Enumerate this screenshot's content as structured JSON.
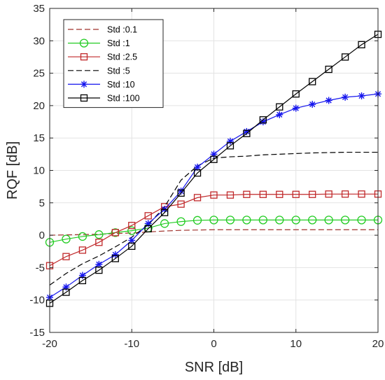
{
  "chart_data": {
    "type": "line",
    "xlabel": "SNR [dB]",
    "ylabel": "RQF [dB]",
    "xlim": [
      -20,
      20
    ],
    "ylim": [
      -15,
      35
    ],
    "xticks": [
      -20,
      -10,
      0,
      10,
      20
    ],
    "yticks": [
      -15,
      -10,
      -5,
      0,
      5,
      10,
      15,
      20,
      25,
      30,
      35
    ],
    "grid": true,
    "legend_position": "top-left",
    "x": [
      -20,
      -18,
      -16,
      -14,
      -12,
      -10,
      -8,
      -6,
      -4,
      -2,
      0,
      2,
      4,
      6,
      8,
      10,
      12,
      14,
      16,
      18,
      20
    ],
    "series": [
      {
        "name": "Std :0.1",
        "color": "#a0322c",
        "line_style": "dashed",
        "marker": "none",
        "values": [
          0.0,
          0.05,
          0.1,
          0.15,
          0.25,
          0.35,
          0.5,
          0.65,
          0.75,
          0.8,
          0.85,
          0.85,
          0.85,
          0.85,
          0.85,
          0.85,
          0.85,
          0.85,
          0.85,
          0.85,
          0.85
        ]
      },
      {
        "name": "Std :1",
        "color": "#22cc22",
        "line_style": "solid",
        "marker": "circle",
        "values": [
          -1.1,
          -0.6,
          -0.2,
          0.1,
          0.4,
          0.7,
          1.1,
          1.8,
          2.1,
          2.3,
          2.35,
          2.35,
          2.35,
          2.35,
          2.35,
          2.35,
          2.35,
          2.35,
          2.35,
          2.35,
          2.35
        ]
      },
      {
        "name": "Std :2.5",
        "color": "#c0282a",
        "line_style": "solid",
        "marker": "square",
        "values": [
          -4.7,
          -3.3,
          -2.3,
          -1.1,
          0.4,
          1.5,
          3.0,
          4.4,
          4.8,
          5.8,
          6.2,
          6.2,
          6.3,
          6.3,
          6.3,
          6.3,
          6.3,
          6.35,
          6.35,
          6.35,
          6.35
        ]
      },
      {
        "name": "Std :5",
        "color": "#000000",
        "line_style": "dashed",
        "marker": "none",
        "values": [
          -7.7,
          -5.9,
          -4.4,
          -3.2,
          -1.8,
          -0.3,
          1.6,
          4.4,
          8.5,
          10.7,
          11.9,
          12.1,
          12.2,
          12.4,
          12.5,
          12.6,
          12.7,
          12.75,
          12.8,
          12.8,
          12.8
        ]
      },
      {
        "name": "Std :10",
        "color": "#1515ee",
        "line_style": "solid",
        "marker": "asterisk",
        "values": [
          -9.6,
          -8.0,
          -6.2,
          -4.5,
          -3.0,
          -0.8,
          1.8,
          4.0,
          6.8,
          10.5,
          12.5,
          14.5,
          16.0,
          17.5,
          18.6,
          19.6,
          20.2,
          20.8,
          21.3,
          21.5,
          21.8
        ]
      },
      {
        "name": "Std :100",
        "color": "#000000",
        "line_style": "solid",
        "marker": "square",
        "values": [
          -10.5,
          -8.8,
          -7.0,
          -5.4,
          -3.6,
          -1.7,
          1.0,
          3.5,
          6.5,
          9.6,
          11.7,
          13.8,
          15.7,
          17.8,
          19.8,
          21.8,
          23.7,
          25.6,
          27.5,
          29.4,
          31.0
        ]
      }
    ]
  }
}
